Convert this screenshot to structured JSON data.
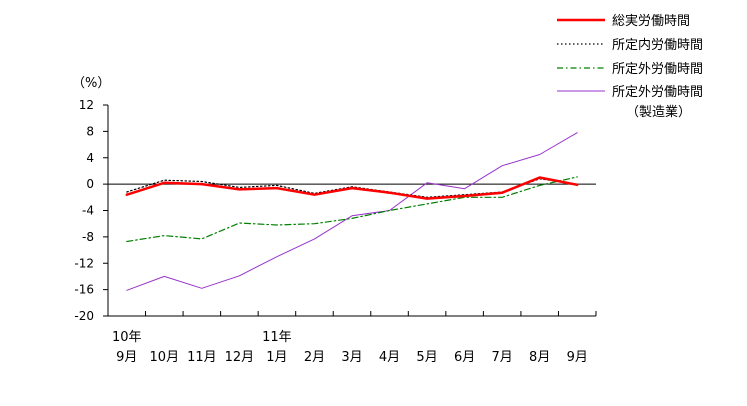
{
  "chart_data": {
    "type": "line",
    "ylabel": "（%）",
    "ylim": [
      -20,
      12
    ],
    "yticks": [
      "12",
      "8",
      "4",
      "0",
      "-4",
      "-8",
      "-12",
      "-16",
      "-20"
    ],
    "grid": false,
    "legend_position": "top-right",
    "categories": [
      "9月",
      "10月",
      "11月",
      "12月",
      "1月",
      "2月",
      "3月",
      "4月",
      "5月",
      "6月",
      "7月",
      "8月",
      "9月"
    ],
    "year_labels": [
      {
        "index": 0,
        "text": "10年"
      },
      {
        "index": 4,
        "text": "11年"
      }
    ],
    "series": [
      {
        "name": "総実労働時間",
        "color": "#ff0000",
        "style": "solid-thick",
        "values": [
          -1.6,
          0.2,
          0.0,
          -0.8,
          -0.6,
          -1.6,
          -0.6,
          -1.3,
          -2.2,
          -1.8,
          -1.3,
          1.0,
          -0.1
        ]
      },
      {
        "name": "所定内労働時間",
        "color": "#000000",
        "style": "dotted",
        "values": [
          -1.2,
          0.6,
          0.4,
          -0.5,
          -0.2,
          -1.4,
          -0.4,
          -1.2,
          -2.0,
          -1.6,
          -1.2,
          0.8,
          0.0
        ]
      },
      {
        "name": "所定外労働時間",
        "color": "#008000",
        "style": "dashdot",
        "values": [
          -8.7,
          -7.8,
          -8.3,
          -5.9,
          -6.2,
          -6.0,
          -5.2,
          -4.0,
          -3.0,
          -2.0,
          -2.0,
          -0.2,
          1.1
        ]
      },
      {
        "name": "所定外労働時間",
        "name_line2": "（製造業）",
        "color": "#9933cc",
        "style": "solid",
        "values": [
          -16.1,
          -14.0,
          -15.8,
          -13.9,
          -11.0,
          -8.3,
          -4.8,
          -4.0,
          0.2,
          -0.7,
          2.8,
          4.5,
          7.8
        ]
      }
    ]
  }
}
